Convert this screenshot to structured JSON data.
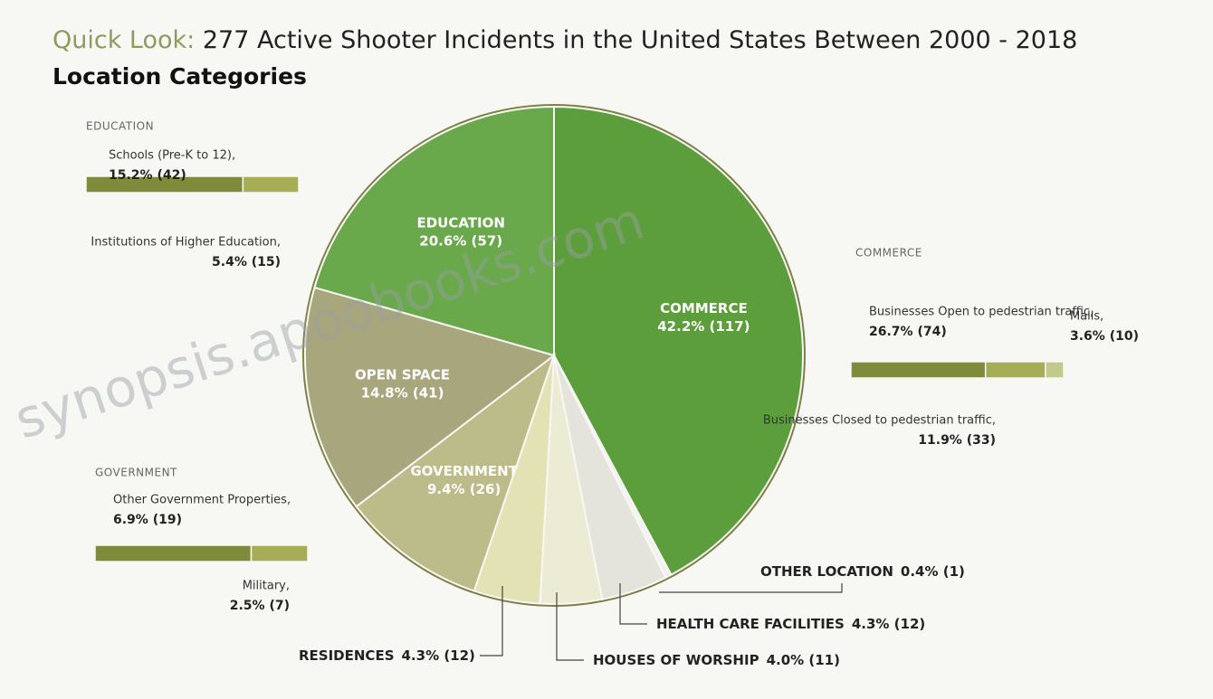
{
  "chart_data": {
    "type": "pie",
    "title_prefix": "Quick Look:",
    "title": "277 Active Shooter Incidents in the United States Between 2000 - 2018",
    "subtitle": "Location Categories",
    "categories": [
      "COMMERCE",
      "OTHER LOCATION",
      "HEALTH CARE FACILITIES",
      "HOUSES OF WORSHIP",
      "RESIDENCES",
      "GOVERNMENT",
      "OPEN SPACE",
      "EDUCATION"
    ],
    "values": [
      42.2,
      0.4,
      4.3,
      4.0,
      4.3,
      9.4,
      14.8,
      20.6
    ],
    "value_labels": [
      "42.2% (117)",
      "0.4% (1)",
      "4.3% (12)",
      "4.0% (11)",
      "4.3% (12)",
      "9.4% (26)",
      "14.8% (41)",
      "20.6% (57)"
    ],
    "colors": [
      "#5c9e3b",
      "#f2f2ee",
      "#e4e4dc",
      "#ececd4",
      "#e3e2b4",
      "#bcbb8a",
      "#a8a67c",
      "#6aa84c"
    ],
    "breakdowns": [
      {
        "name": "EDUCATION",
        "parts": [
          {
            "label": "Schools (Pre-K to 12),",
            "value": 15.2,
            "value_label": "15.2% (42)",
            "color": "#7f8a3a"
          },
          {
            "label": "Institutions of Higher Education,",
            "value": 5.4,
            "value_label": "5.4% (15)",
            "color": "#a7ad56"
          }
        ]
      },
      {
        "name": "COMMERCE",
        "parts": [
          {
            "label": "Businesses Open to pedestrian traffic,",
            "value": 26.7,
            "value_label": "26.7% (74)",
            "color": "#7f8a3a"
          },
          {
            "label": "Businesses Closed to pedestrian traffic,",
            "value": 11.9,
            "value_label": "11.9% (33)",
            "color": "#a7ad56"
          },
          {
            "label": "Malls,",
            "value": 3.6,
            "value_label": "3.6% (10)",
            "color": "#c4c98a"
          }
        ]
      },
      {
        "name": "GOVERNMENT",
        "parts": [
          {
            "label": "Other Government Properties,",
            "value": 6.9,
            "value_label": "6.9% (19)",
            "color": "#7f8a3a"
          },
          {
            "label": "Military,",
            "value": 2.5,
            "value_label": "2.5% (7)",
            "color": "#a7ad56"
          }
        ]
      }
    ],
    "watermark": "synopsis.apoobooks.com"
  }
}
